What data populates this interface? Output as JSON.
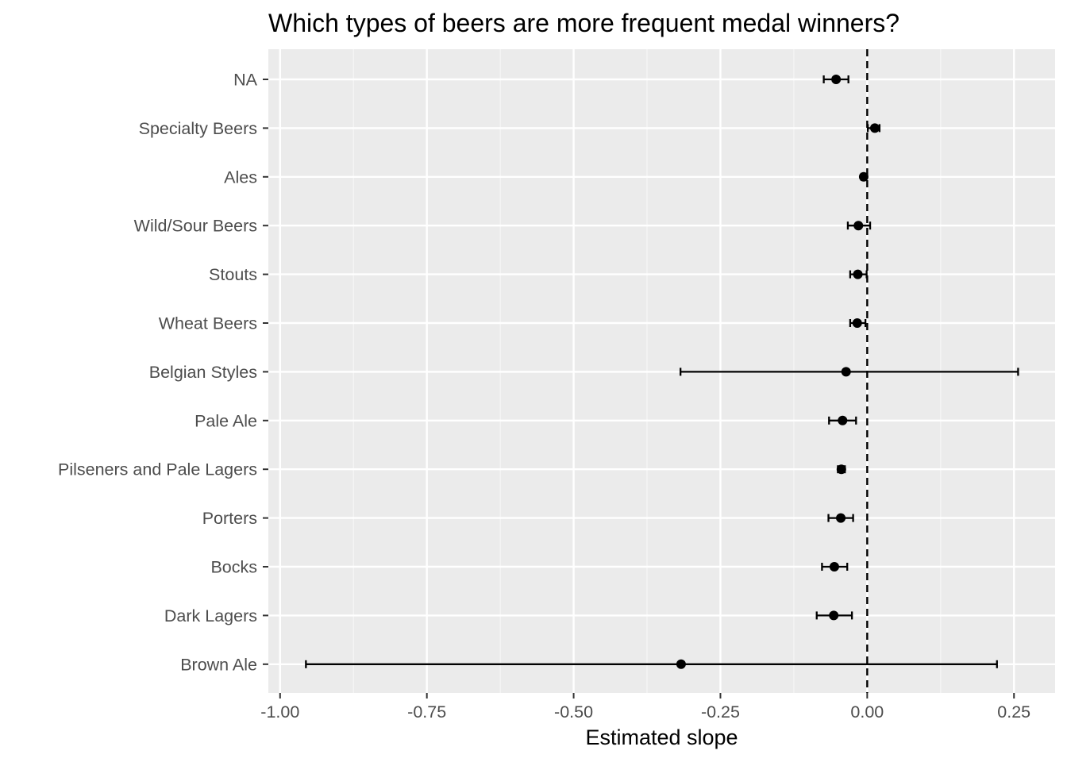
{
  "chart_data": {
    "type": "scatter",
    "title": "Which types of beers are more frequent medal winners?",
    "xlabel": "Estimated slope",
    "ylabel": "",
    "xlim": [
      -1.02,
      0.32
    ],
    "x_ticks": [
      -1.0,
      -0.75,
      -0.5,
      -0.25,
      0.0,
      0.25
    ],
    "x_tick_labels": [
      "-1.00",
      "-0.75",
      "-0.50",
      "-0.25",
      "0.00",
      "0.25"
    ],
    "reference_line": {
      "x": 0,
      "style": "dashed"
    },
    "grid": true,
    "categories": [
      "NA",
      "Specialty Beers",
      "Ales",
      "Wild/Sour Beers",
      "Stouts",
      "Wheat Beers",
      "Belgian Styles",
      "Pale Ale",
      "Pilseners and Pale Lagers",
      "Porters",
      "Bocks",
      "Dark Lagers",
      "Brown Ale"
    ],
    "points": [
      {
        "category": "NA",
        "estimate": -0.053,
        "low": -0.074,
        "high": -0.032
      },
      {
        "category": "Specialty Beers",
        "estimate": 0.013,
        "low": 0.001,
        "high": 0.021
      },
      {
        "category": "Ales",
        "estimate": -0.006,
        "low": -0.01,
        "high": -0.002
      },
      {
        "category": "Wild/Sour Beers",
        "estimate": -0.015,
        "low": -0.033,
        "high": 0.005
      },
      {
        "category": "Stouts",
        "estimate": -0.016,
        "low": -0.029,
        "high": -0.001
      },
      {
        "category": "Wheat Beers",
        "estimate": -0.017,
        "low": -0.029,
        "high": -0.003
      },
      {
        "category": "Belgian Styles",
        "estimate": -0.036,
        "low": -0.318,
        "high": 0.257
      },
      {
        "category": "Pale Ale",
        "estimate": -0.042,
        "low": -0.065,
        "high": -0.019
      },
      {
        "category": "Pilseners and Pale Lagers",
        "estimate": -0.044,
        "low": -0.05,
        "high": -0.038
      },
      {
        "category": "Porters",
        "estimate": -0.045,
        "low": -0.066,
        "high": -0.024
      },
      {
        "category": "Bocks",
        "estimate": -0.056,
        "low": -0.077,
        "high": -0.034
      },
      {
        "category": "Dark Lagers",
        "estimate": -0.057,
        "low": -0.086,
        "high": -0.026
      },
      {
        "category": "Brown Ale",
        "estimate": -0.317,
        "low": -0.956,
        "high": 0.221
      }
    ],
    "colors": {
      "panel_background": "#ebebeb",
      "grid_major": "#ffffff",
      "grid_minor": "#f6f6f6",
      "points": "#000000",
      "tick_text": "#4d4d4d"
    }
  }
}
